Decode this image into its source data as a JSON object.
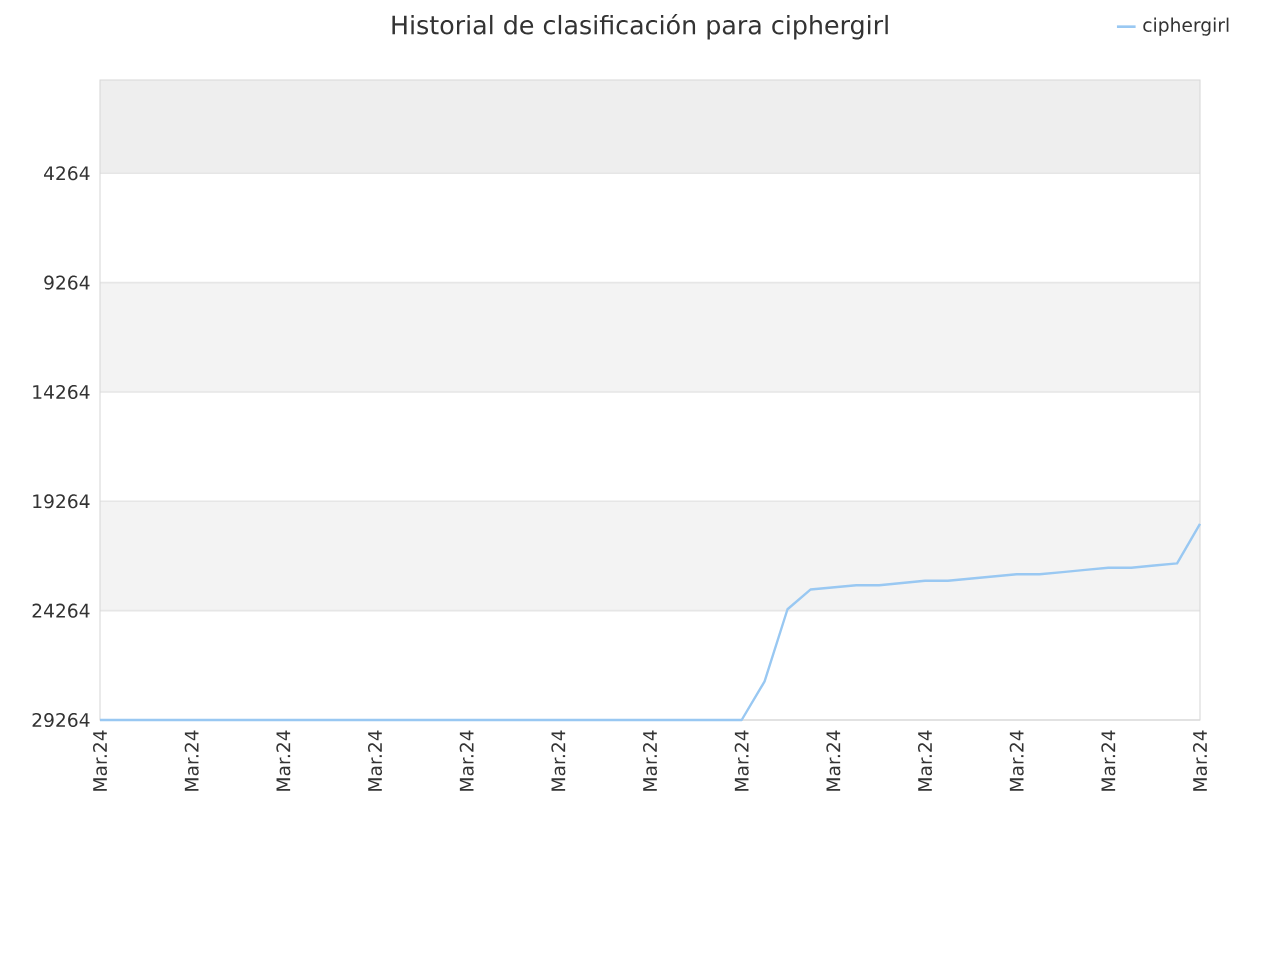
{
  "chart_data": {
    "type": "line",
    "title": "Historial de clasificación para ciphergirl",
    "categories": [
      "Mar.24",
      null,
      null,
      null,
      "Mar.24",
      null,
      null,
      null,
      "Mar.24",
      null,
      null,
      null,
      "Mar.24",
      null,
      null,
      null,
      "Mar.24",
      null,
      null,
      null,
      "Mar.24",
      null,
      null,
      null,
      "Mar.24",
      null,
      null,
      null,
      "Mar.24",
      null,
      null,
      null,
      "Mar.24",
      null,
      null,
      null,
      "Mar.24",
      null,
      null,
      null,
      "Mar.24",
      null,
      null,
      null,
      "Mar.24",
      null,
      null,
      null,
      "Mar.24"
    ],
    "series": [
      {
        "name": "ciphergirl",
        "color": "#99c8f2",
        "values": [
          29264,
          29264,
          29264,
          29264,
          29264,
          29264,
          29264,
          29264,
          29264,
          29264,
          29264,
          29264,
          29264,
          29264,
          29264,
          29264,
          29264,
          29264,
          29264,
          29264,
          29264,
          29264,
          29264,
          29264,
          29264,
          29264,
          29264,
          29264,
          29264,
          27500,
          24200,
          23300,
          23200,
          23100,
          23100,
          23000,
          22900,
          22900,
          22800,
          22700,
          22600,
          22600,
          22500,
          22400,
          22300,
          22300,
          22200,
          22100,
          20300
        ]
      }
    ],
    "ylim": [
      29264,
      0
    ],
    "yticks": [
      4264,
      9264,
      14264,
      19264,
      24264,
      29264
    ],
    "bands": [
      {
        "axis": "y",
        "from": 0,
        "to": 4264,
        "color": "#eeeeee"
      },
      {
        "axis": "y",
        "from": 9264,
        "to": 14264,
        "color": "#f3f3f3"
      },
      {
        "axis": "y",
        "from": 19264,
        "to": 24264,
        "color": "#f3f3f3"
      }
    ],
    "grid": "y",
    "legend": "top right",
    "marker": "none",
    "line_style": "solid"
  }
}
